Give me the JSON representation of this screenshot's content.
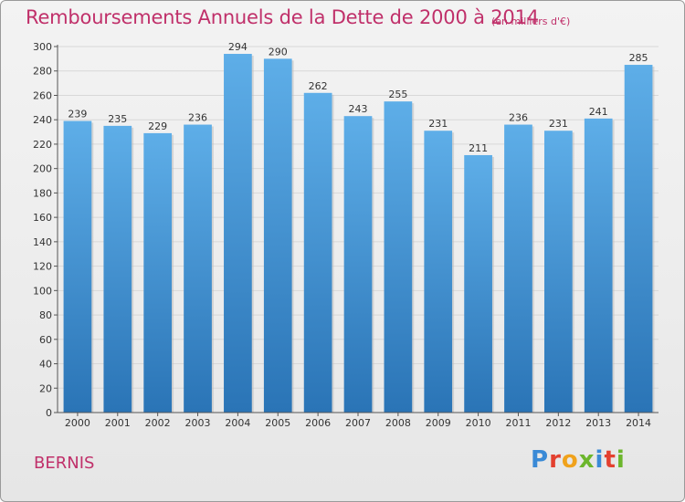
{
  "title": "Remboursements Annuels de la Dette de 2000 à 2014",
  "unit": "(en milliers d'€)",
  "commune": "BERNIS",
  "logo": {
    "text": "Proxiti",
    "letters": [
      {
        "ch": "P",
        "color": "#3a8ad6"
      },
      {
        "ch": "r",
        "color": "#e3402f"
      },
      {
        "ch": "o",
        "color": "#f0a21b"
      },
      {
        "ch": "x",
        "color": "#6cb62c"
      },
      {
        "ch": "i",
        "color": "#3a8ad6"
      },
      {
        "ch": "t",
        "color": "#e3402f"
      },
      {
        "ch": "i",
        "color": "#6cb62c"
      }
    ]
  },
  "colors": {
    "bar_top": "#5eaee8",
    "bar_bottom": "#2a74b6",
    "title": "#c0306a",
    "grid": "#d8d8d8"
  },
  "chart_data": {
    "type": "bar",
    "categories": [
      "2000",
      "2001",
      "2002",
      "2003",
      "2004",
      "2005",
      "2006",
      "2007",
      "2008",
      "2009",
      "2010",
      "2011",
      "2012",
      "2013",
      "2014"
    ],
    "values": [
      239,
      235,
      229,
      236,
      294,
      290,
      262,
      243,
      255,
      231,
      211,
      236,
      231,
      241,
      285
    ],
    "ylim": [
      0,
      300
    ],
    "yticks": [
      0,
      20,
      40,
      60,
      80,
      100,
      120,
      140,
      160,
      180,
      200,
      220,
      240,
      260,
      280,
      300
    ],
    "grid": true,
    "data_labels": true
  }
}
